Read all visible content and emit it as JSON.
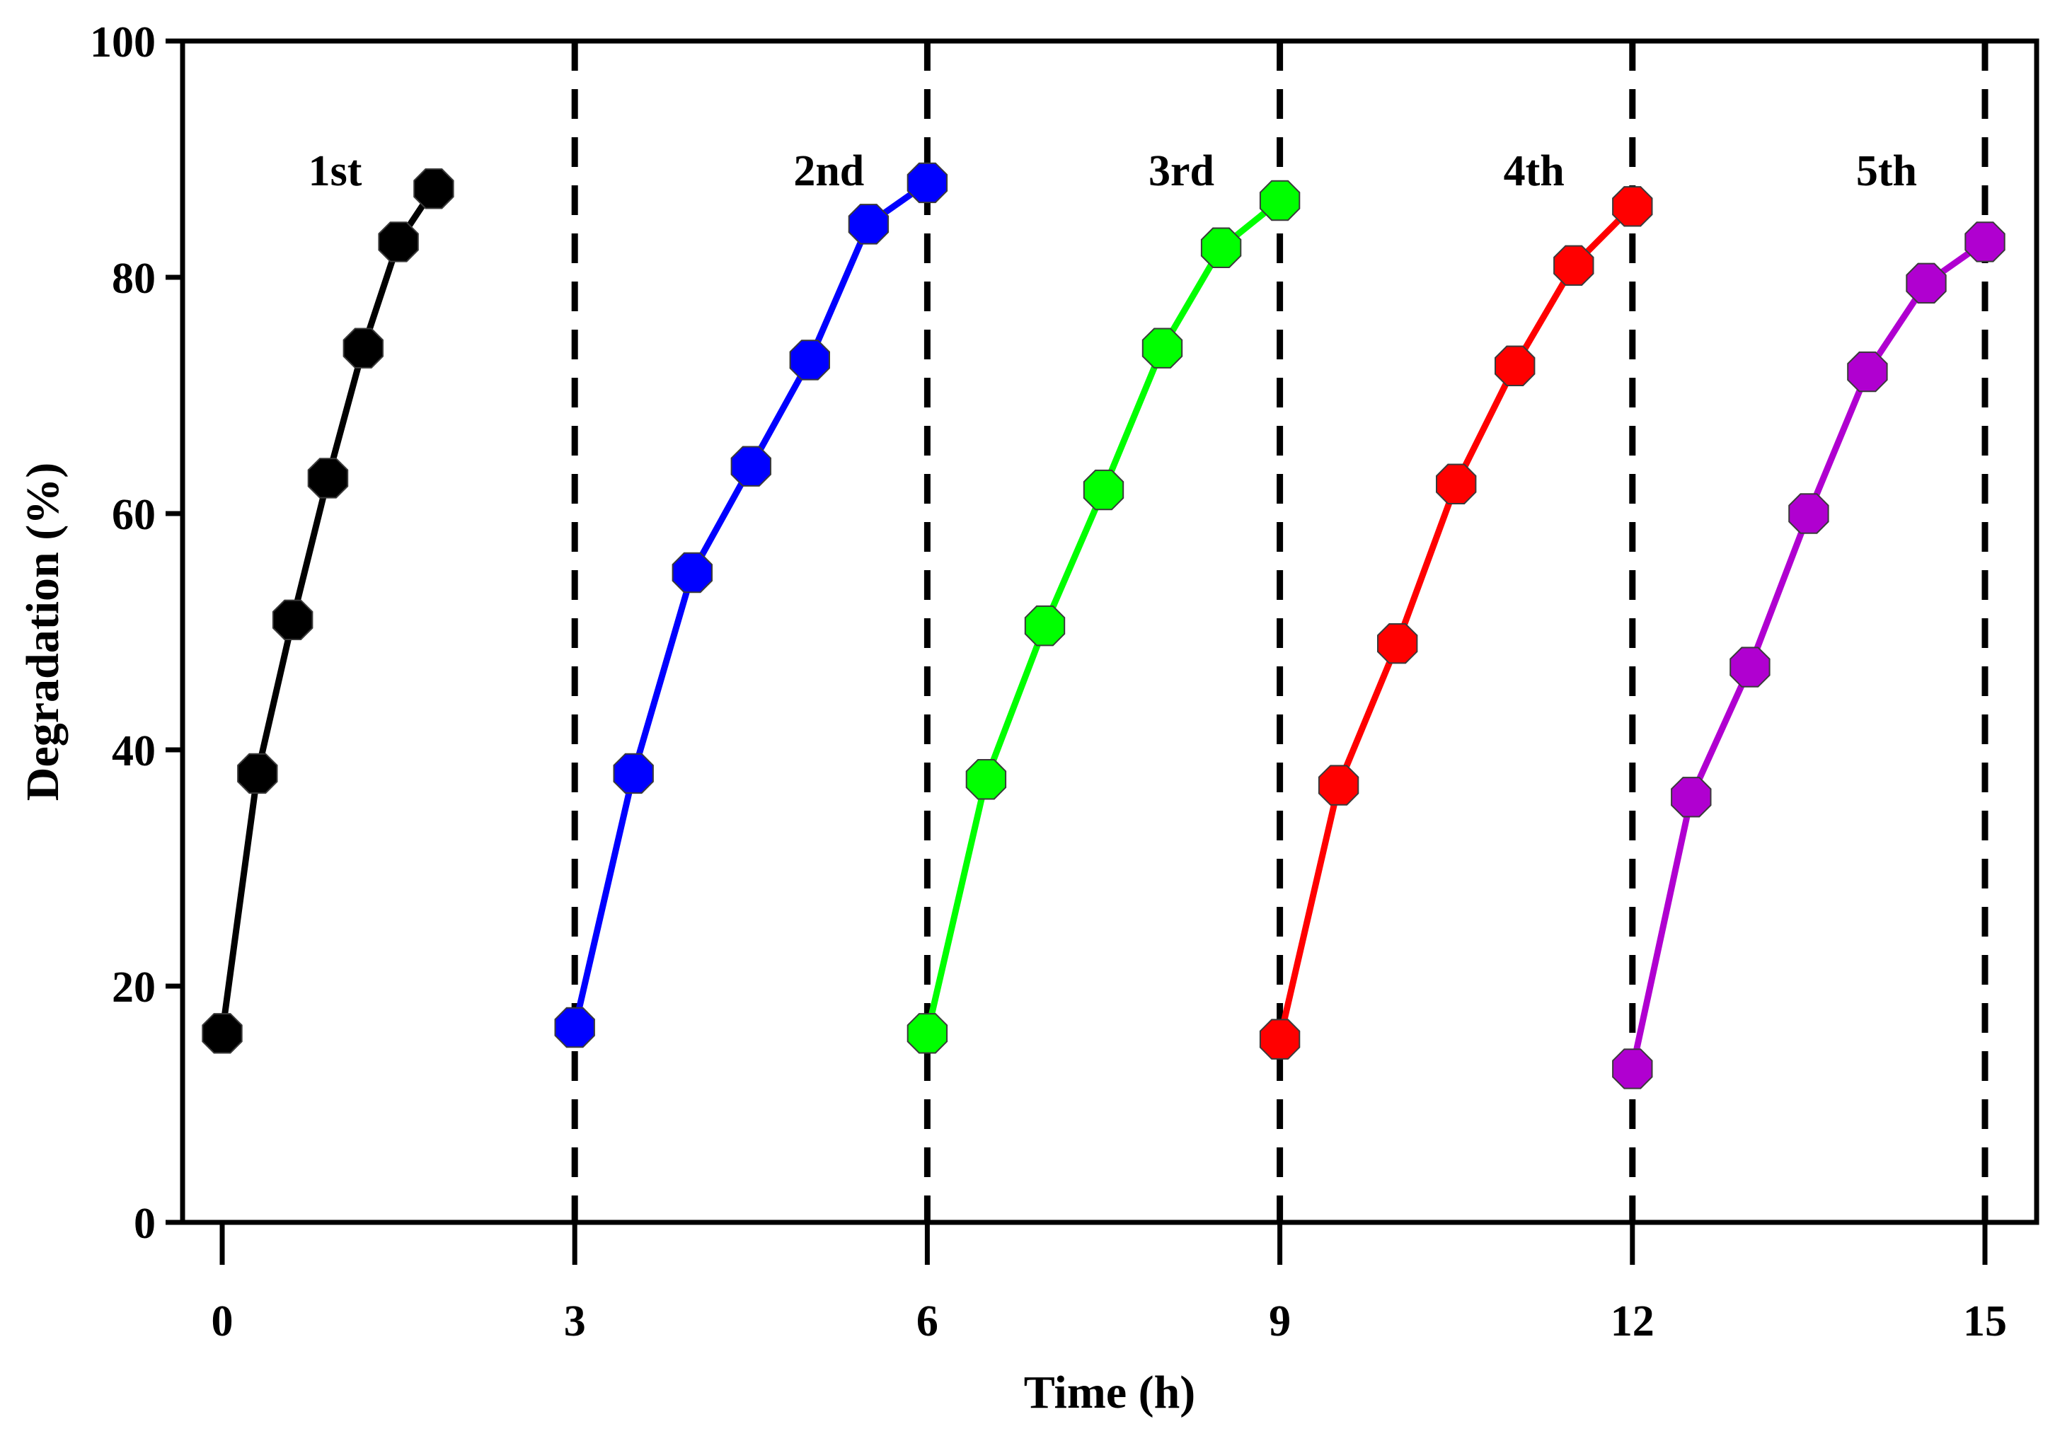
{
  "chart_data": {
    "type": "line",
    "title": "",
    "xlabel": "Time (h)",
    "ylabel": "Degradation (%)",
    "xlim": [
      0,
      15.4
    ],
    "ylim": [
      0,
      100
    ],
    "xticks": [
      0,
      3,
      6,
      9,
      12,
      15
    ],
    "yticks": [
      0,
      20,
      40,
      60,
      80,
      100
    ],
    "grid": false,
    "divider_x": [
      3,
      6,
      9,
      12,
      15
    ],
    "series": [
      {
        "name": "1st",
        "color": "#000000",
        "x": [
          0,
          0.3,
          0.6,
          0.9,
          1.2,
          1.5,
          1.8
        ],
        "values": [
          16,
          38,
          51,
          63,
          74,
          83,
          87.5
        ]
      },
      {
        "name": "2nd",
        "color": "#0000ff",
        "x": [
          3,
          3.5,
          4,
          4.5,
          5,
          5.5,
          6
        ],
        "values": [
          16.5,
          38,
          55,
          64,
          73,
          84.5,
          88
        ]
      },
      {
        "name": "3rd",
        "color": "#00ff00",
        "x": [
          6,
          6.5,
          7,
          7.5,
          8,
          8.5,
          9
        ],
        "values": [
          16,
          37.5,
          50.5,
          62,
          74,
          82.5,
          86.5
        ]
      },
      {
        "name": "4th",
        "color": "#ff0000",
        "x": [
          9,
          9.5,
          10,
          10.5,
          11,
          11.5,
          12
        ],
        "values": [
          15.5,
          37,
          49,
          62.5,
          72.5,
          81,
          86
        ]
      },
      {
        "name": "5th",
        "color": "#b000d0",
        "x": [
          12,
          12.5,
          13,
          13.5,
          14,
          14.5,
          15
        ],
        "values": [
          13,
          36,
          47,
          60,
          72,
          79.5,
          83
        ]
      }
    ]
  }
}
